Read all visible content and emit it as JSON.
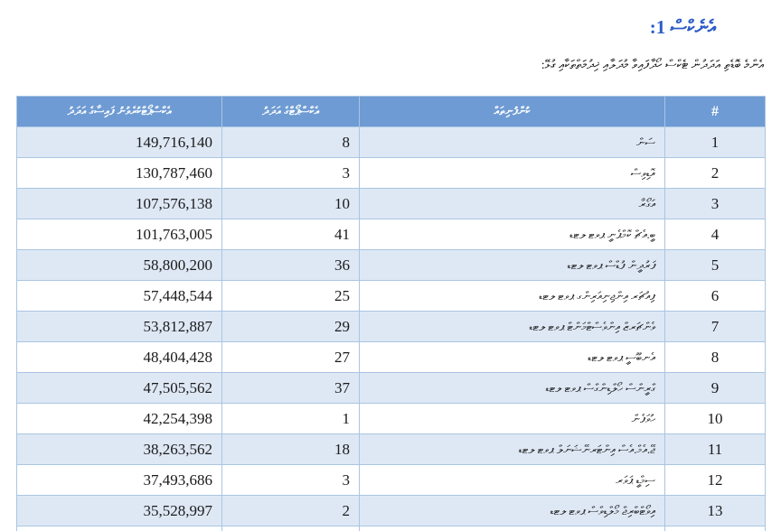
{
  "page": {
    "title": "އެނެކްސް 1:",
    "intro": "އެންމެ ބޮޑެތި އަދަދުން ޓެކްސް ހޯދާފައިވާ މުދަލާއި ޚިދުމަތްތަކާއި ގުޅޭ:"
  },
  "colors": {
    "title_blue": "#2B5DC7",
    "header_bg": "#6E9BD3",
    "alt_row_bg": "#DEE8F5",
    "border": "#AAC5E2"
  },
  "table": {
    "headers": {
      "index": "#",
      "name": "ކުންފުނިތައް",
      "count": "އެކްސްޕޯޓްގެ އަދަދު",
      "amount": "އެކްސްޕޯޓްކުރެވުނު ފައިސާގެ އަދަދު"
    },
    "rows": [
      {
        "index": "1",
        "name": "ސަން",
        "count": "8",
        "amount": "149,716,140"
      },
      {
        "index": "2",
        "name": "އޮޑިވިސް",
        "count": "3",
        "amount": "130,787,460"
      },
      {
        "index": "3",
        "name": "އަގޯރާ",
        "count": "10",
        "amount": "107,576,138"
      },
      {
        "index": "4",
        "name": "ބީ.އެޗް ކޮމްޕެނީ ޕވޓ ލޓޑ",
        "count": "41",
        "amount": "101,763,005"
      },
      {
        "index": "5",
        "name": "ފަރުދީން ފުޑްސް ޕވޓ ލޓޑ",
        "count": "36",
        "amount": "58,800,200"
      },
      {
        "index": "6",
        "name": "ފިއުޗަރ އިންޖިނިއަރިންގ ޕވޓ ލޓޑ",
        "count": "25",
        "amount": "57,448,544"
      },
      {
        "index": "7",
        "name": "ވެންޗަރޒް އިންވެސްޓްމަންޓް ޕވޓ ލޓޑ",
        "count": "29",
        "amount": "53,812,887"
      },
      {
        "index": "8",
        "name": "އެނބޫސީ ޕވޓ ލޓޑ",
        "count": "27",
        "amount": "48,404,428"
      },
      {
        "index": "9",
        "name": "ގްރީންސް ހޯލްޑިންގްސް ޕވޓ ލޓޑ",
        "count": "37",
        "amount": "47,505,562"
      },
      {
        "index": "10",
        "name": "ހުވަފެން",
        "count": "1",
        "amount": "42,254,398"
      },
      {
        "index": "11",
        "name": "ޖޭ.އެމް.އެސް އިންޓަރނޭޝަނަލް ޕވޓ ލޓޑ",
        "count": "18",
        "amount": "38,263,562"
      },
      {
        "index": "12",
        "name": "ސިމްޑީ ޕަވަރ",
        "count": "3",
        "amount": "37,493,686"
      },
      {
        "index": "13",
        "name": "އިވޯޓްބްރިޖް މޯލްޑިވްސް ޕވޓ ލޓޑ",
        "count": "2",
        "amount": "35,528,997"
      }
    ]
  }
}
